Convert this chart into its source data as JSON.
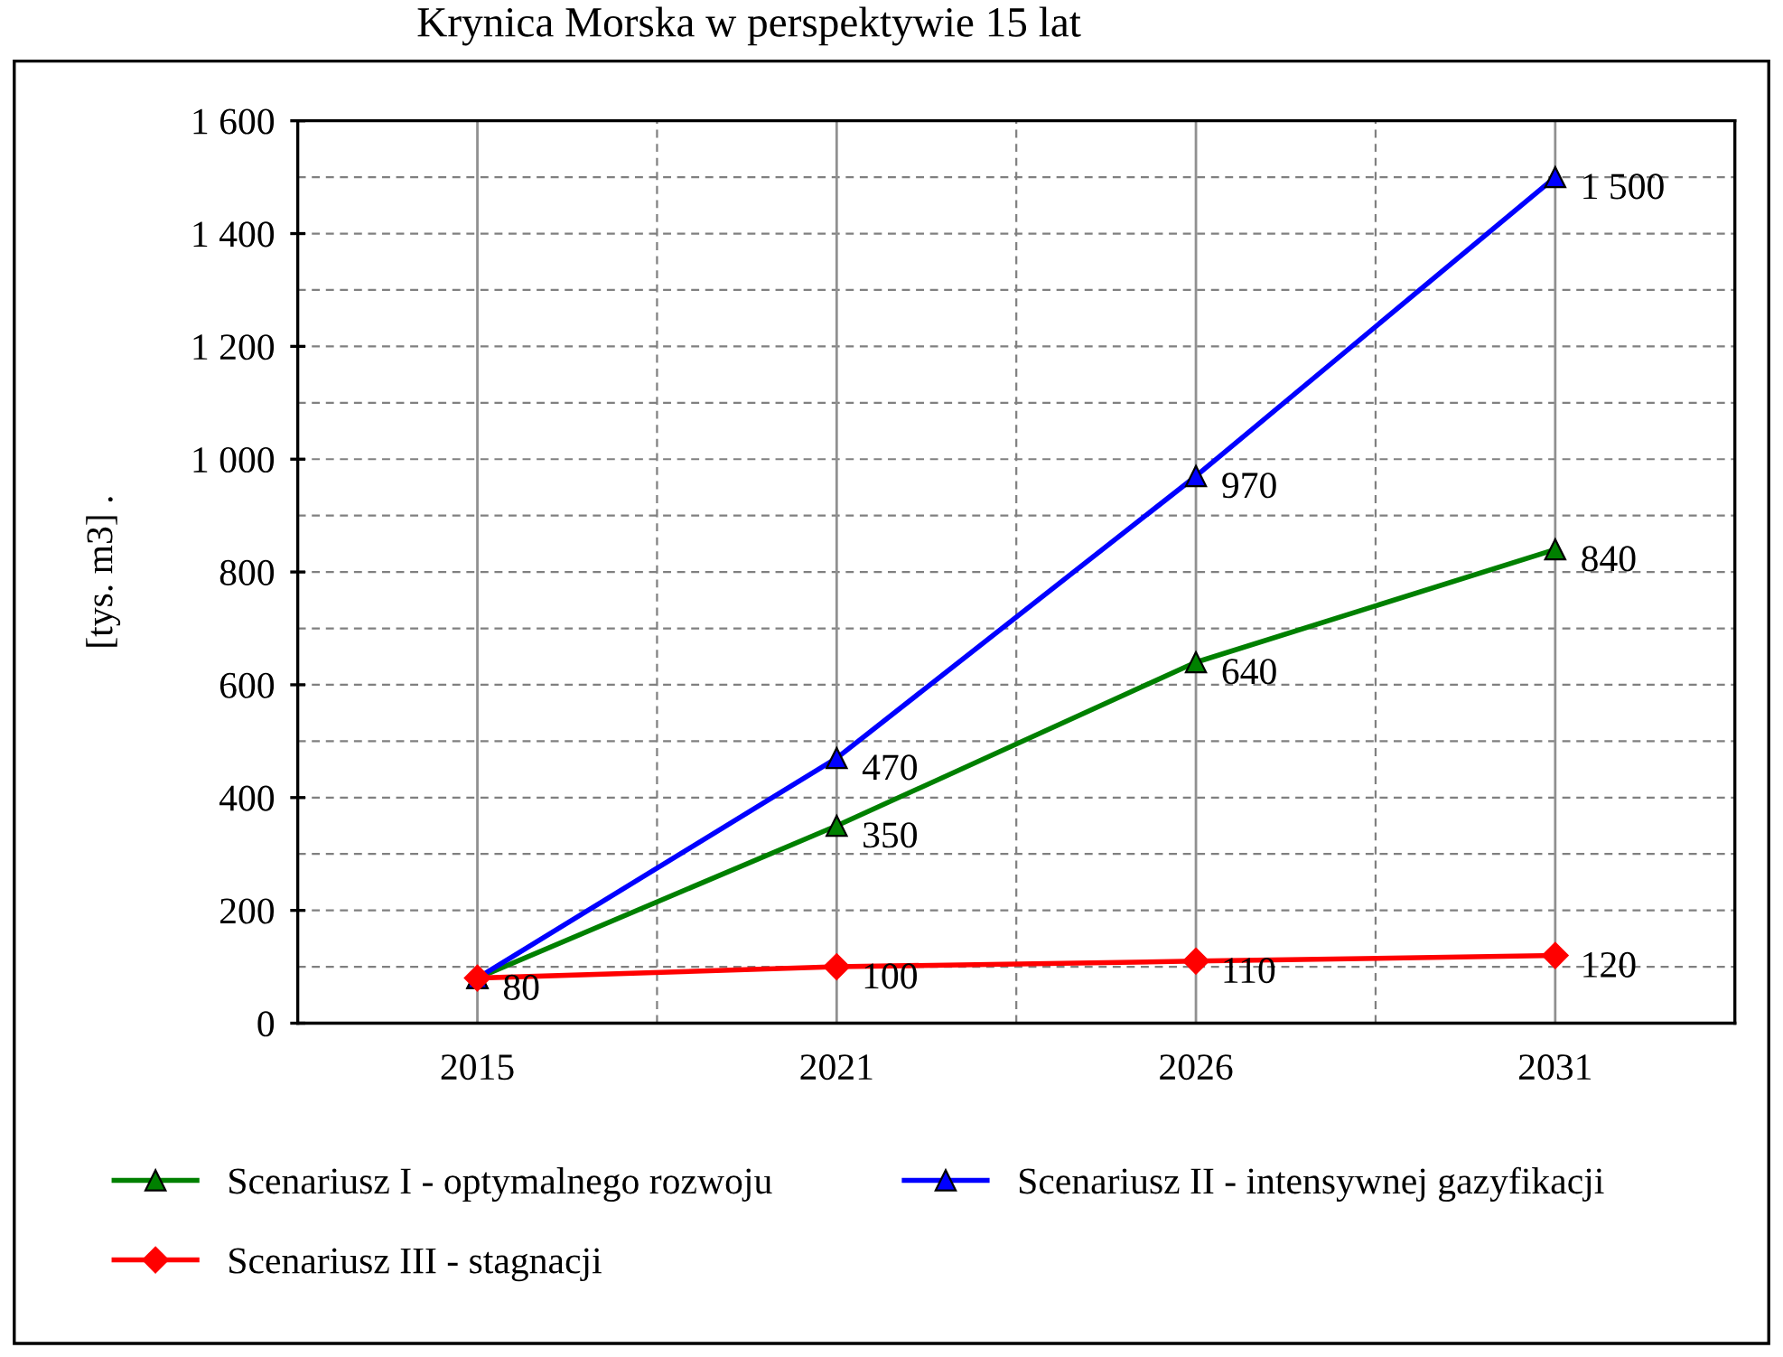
{
  "chart_data": {
    "type": "line",
    "title": "Krynica Morska w perspektywie 15 lat",
    "ylabel": "[tys. m3] .",
    "categories": [
      "2015",
      "2021",
      "2026",
      "2031"
    ],
    "series": [
      {
        "name": "Scenariusz I - optymalnego rozwoju",
        "color": "#008000",
        "marker": "triangle",
        "values": [
          80,
          350,
          640,
          840
        ],
        "value_labels": [
          null,
          "350",
          "640",
          "840"
        ]
      },
      {
        "name": "Scenariusz II - intensywnej gazyfikacji",
        "color": "#0000ff",
        "marker": "triangle",
        "values": [
          80,
          470,
          970,
          1500
        ],
        "value_labels": [
          null,
          "470",
          "970",
          "1 500"
        ]
      },
      {
        "name": "Scenariusz III - stagnacji",
        "color": "#ff0000",
        "marker": "diamond",
        "values": [
          80,
          100,
          110,
          120
        ],
        "value_labels": [
          "80",
          "100",
          "110",
          "120"
        ]
      }
    ],
    "ylim": [
      0,
      1600
    ],
    "yticks": [
      0,
      {
        "value": 100,
        "label": null
      },
      {
        "value": 200,
        "label": "200"
      },
      {
        "value": 300,
        "label": null
      },
      {
        "value": 400,
        "label": "400"
      },
      {
        "value": 500,
        "label": null
      },
      {
        "value": 600,
        "label": "600"
      },
      {
        "value": 700,
        "label": null
      },
      {
        "value": 800,
        "label": "800"
      },
      {
        "value": 900,
        "label": null
      },
      {
        "value": 1000,
        "label": "1 000"
      },
      {
        "value": 1100,
        "label": null
      },
      {
        "value": 1200,
        "label": "1 200"
      },
      {
        "value": 1300,
        "label": null
      },
      {
        "value": 1400,
        "label": "1 400"
      },
      {
        "value": 1500,
        "label": null
      },
      {
        "value": 1600,
        "label": "1 600"
      }
    ],
    "grid": true,
    "legend": "bottom",
    "line_style": "solid"
  }
}
